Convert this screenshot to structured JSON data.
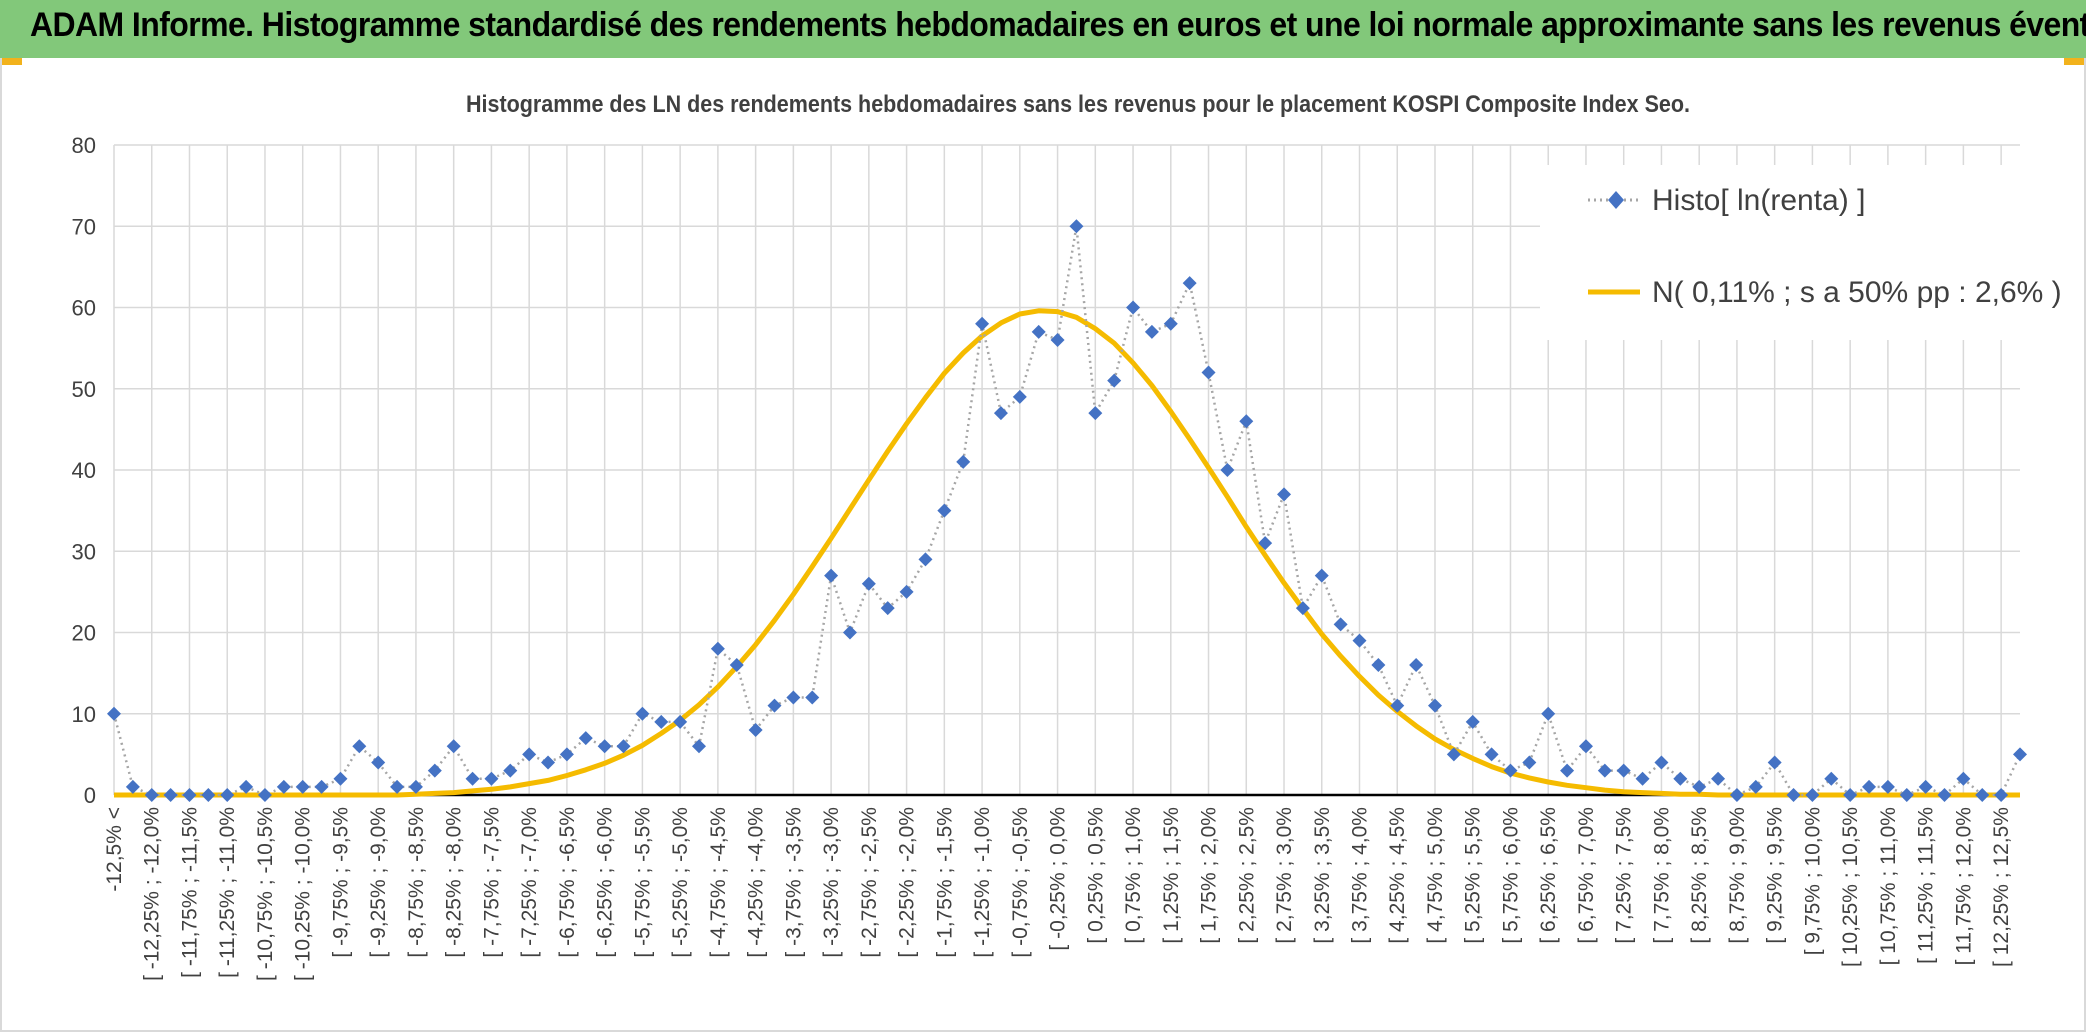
{
  "header": {
    "title": "ADAM Informe. Histogramme standardisé des rendements hebdomadaires en euros et une loi normale approximante sans les revenus éventuels"
  },
  "colors": {
    "header_bg": "#82c87a",
    "histo_marker": "#4472c4",
    "histo_line": "#a6a6a6",
    "normal_curve": "#f5bb00",
    "grid": "#d9d9d9",
    "axis_text": "#404040"
  },
  "chart_data": {
    "type": "line",
    "title": "Histogramme des LN des rendements hebdomadaires sans les revenus pour le placement KOSPI Composite Index Seo.",
    "xlabel": "",
    "ylabel": "",
    "ylim": [
      0,
      80
    ],
    "yticks": [
      0,
      10,
      20,
      30,
      40,
      50,
      60,
      70,
      80
    ],
    "grid": true,
    "legend_position": "top-right",
    "categories": [
      "-12,5% <",
      "",
      "[ -12,25% ; -12,0%",
      "",
      "[ -11,75% ; -11,5%",
      "",
      "[ -11,25% ; -11,0%",
      "",
      "[ -10,75% ; -10,5%",
      "",
      "[ -10,25% ; -10,0%",
      "",
      "[ -9,75% ; -9,5%",
      "",
      "[ -9,25% ; -9,0%",
      "",
      "[ -8,75% ; -8,5%",
      "",
      "[ -8,25% ; -8,0%",
      "",
      "[ -7,75% ; -7,5%",
      "",
      "[ -7,25% ; -7,0%",
      "",
      "[ -6,75% ; -6,5%",
      "",
      "[ -6,25% ; -6,0%",
      "",
      "[ -5,75% ; -5,5%",
      "",
      "[ -5,25% ; -5,0%",
      "",
      "[ -4,75% ; -4,5%",
      "",
      "[ -4,25% ; -4,0%",
      "",
      "[ -3,75% ; -3,5%",
      "",
      "[ -3,25% ; -3,0%",
      "",
      "[ -2,75% ; -2,5%",
      "",
      "[ -2,25% ; -2,0%",
      "",
      "[ -1,75% ; -1,5%",
      "",
      "[ -1,25% ; -1,0%",
      "",
      "[ -0,75% ; -0,5%",
      "",
      "[ -0,25% ; 0,0%",
      "",
      "[ 0,25% ; 0,5%",
      "",
      "[ 0,75% ; 1,0%",
      "",
      "[ 1,25% ; 1,5%",
      "",
      "[ 1,75% ; 2,0%",
      "",
      "[ 2,25% ; 2,5%",
      "",
      "[ 2,75% ; 3,0%",
      "",
      "[ 3,25% ; 3,5%",
      "",
      "[ 3,75% ; 4,0%",
      "",
      "[ 4,25% ; 4,5%",
      "",
      "[ 4,75% ; 5,0%",
      "",
      "[ 5,25% ; 5,5%",
      "",
      "[ 5,75% ; 6,0%",
      "",
      "[ 6,25% ; 6,5%",
      "",
      "[ 6,75% ; 7,0%",
      "",
      "[ 7,25% ; 7,5%",
      "",
      "[ 7,75% ; 8,0%",
      "",
      "[ 8,25% ; 8,5%",
      "",
      "[ 8,75% ; 9,0%",
      "",
      "[ 9,25% ; 9,5%",
      "",
      "[ 9,75% ; 10,0%",
      "",
      "[ 10,25% ; 10,5%",
      "",
      "[ 10,75% ; 11,0%",
      "",
      "[ 11,25% ; 11,5%",
      "",
      "[ 11,75% ; 12,0%",
      "",
      "[ 12,25% ; 12,5%",
      ""
    ],
    "series": [
      {
        "name": "Histo[ ln(renta) ]",
        "style": "dotted-line-diamond-markers",
        "color": "#4472c4",
        "values": [
          10,
          1,
          0,
          0,
          0,
          0,
          0,
          1,
          0,
          1,
          1,
          1,
          2,
          6,
          4,
          1,
          1,
          3,
          6,
          2,
          2,
          3,
          5,
          4,
          5,
          7,
          6,
          6,
          10,
          9,
          9,
          6,
          18,
          16,
          8,
          11,
          12,
          12,
          27,
          20,
          26,
          23,
          25,
          29,
          35,
          41,
          58,
          47,
          49,
          57,
          56,
          70,
          47,
          51,
          60,
          57,
          58,
          63,
          52,
          40,
          46,
          31,
          37,
          23,
          27,
          21,
          19,
          16,
          11,
          16,
          11,
          5,
          9,
          5,
          3,
          4,
          10,
          3,
          6,
          3,
          3,
          2,
          4,
          2,
          1,
          2,
          0,
          1,
          4,
          0,
          0,
          2,
          0,
          1,
          1,
          0,
          1,
          0,
          2,
          0,
          0,
          5
        ]
      },
      {
        "name": "N( 0,11% ; s a 50% pp : 2,6% )",
        "style": "solid-line",
        "color": "#f5bb00",
        "values": [
          0,
          0,
          0,
          0,
          0,
          0,
          0,
          0,
          0,
          0,
          0,
          0,
          0,
          0,
          0,
          0,
          0.1,
          0.2,
          0.3,
          0.5,
          0.7,
          1.0,
          1.4,
          1.8,
          2.4,
          3.1,
          3.9,
          4.9,
          6.1,
          7.6,
          9.2,
          11.1,
          13.3,
          15.8,
          18.5,
          21.5,
          24.7,
          28.1,
          31.6,
          35.2,
          38.8,
          42.3,
          45.7,
          48.9,
          51.9,
          54.4,
          56.5,
          58.1,
          59.2,
          59.6,
          59.5,
          58.8,
          57.4,
          55.6,
          53.2,
          50.4,
          47.2,
          43.8,
          40.3,
          36.7,
          33.0,
          29.5,
          26.1,
          22.9,
          19.8,
          17.1,
          14.6,
          12.3,
          10.3,
          8.5,
          6.9,
          5.6,
          4.5,
          3.5,
          2.7,
          2.1,
          1.6,
          1.2,
          0.9,
          0.6,
          0.4,
          0.3,
          0.2,
          0.1,
          0.1,
          0,
          0,
          0,
          0,
          0,
          0,
          0,
          0,
          0,
          0,
          0,
          0,
          0,
          0,
          0,
          0,
          0
        ]
      }
    ]
  }
}
